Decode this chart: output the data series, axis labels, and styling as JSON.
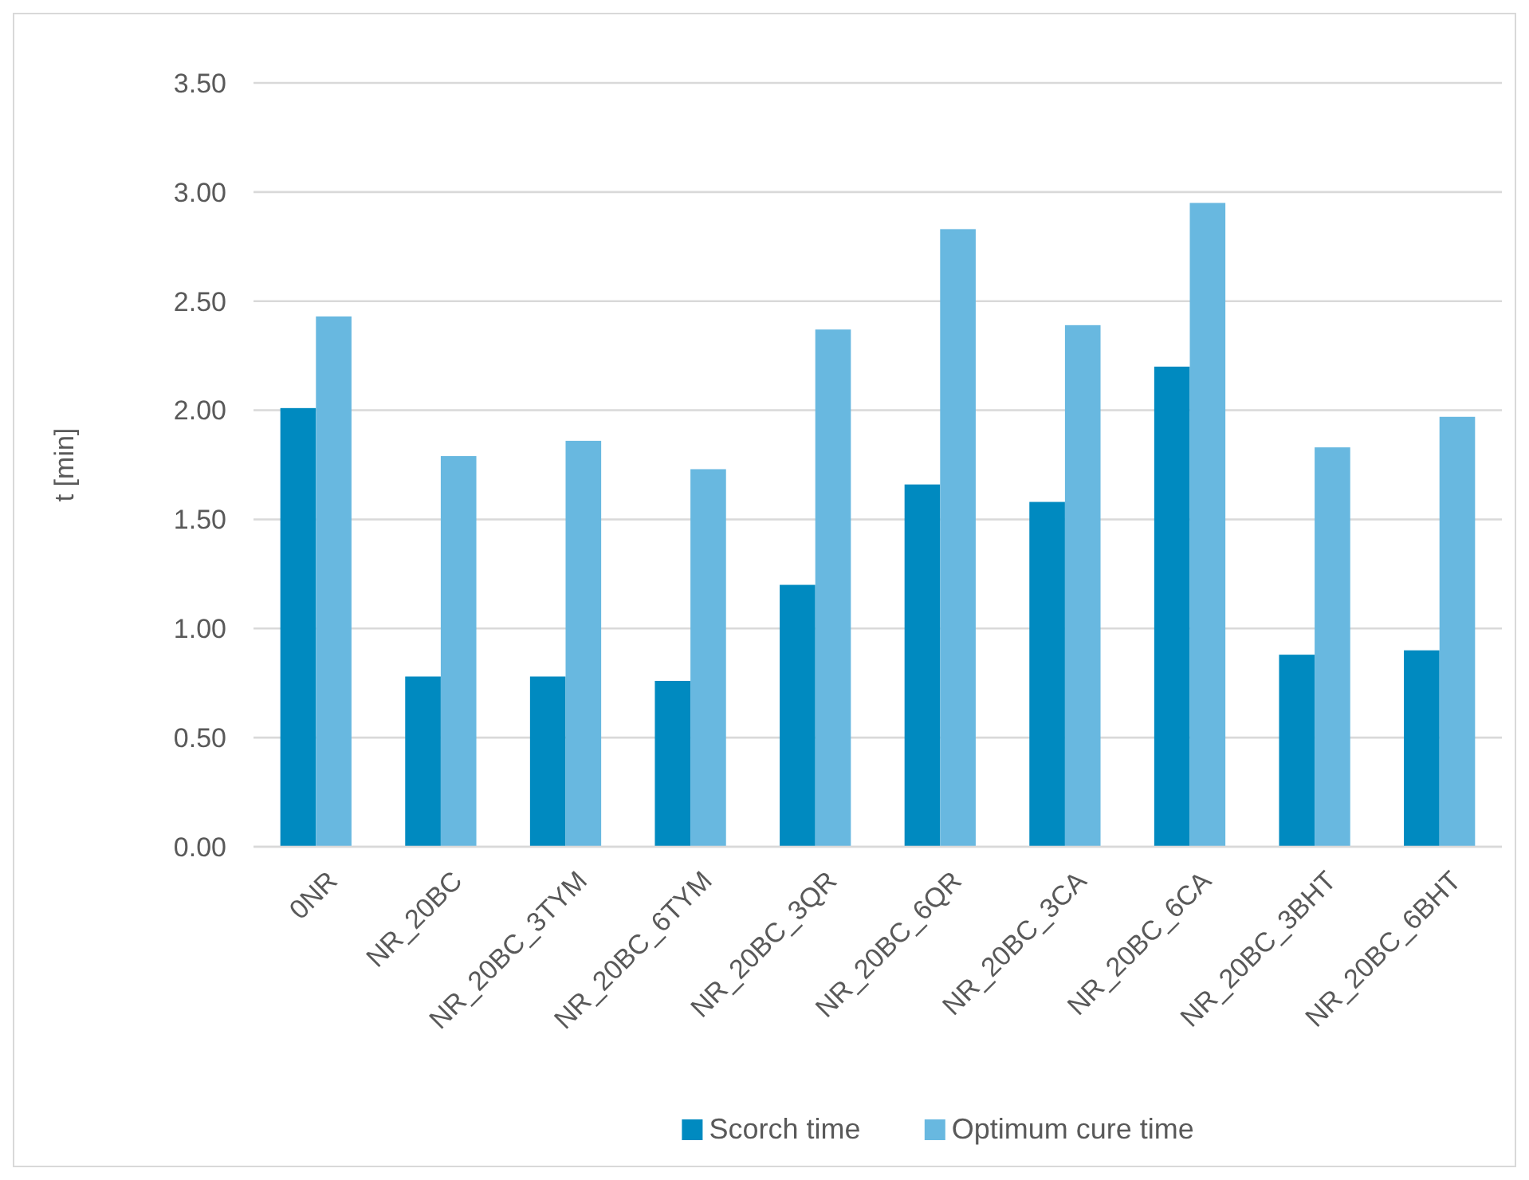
{
  "chart_data": {
    "type": "bar",
    "ylabel": "t [min]",
    "categories": [
      "0NR",
      "NR_20BC",
      "NR_20BC_3TYM",
      "NR_20BC_6TYM",
      "NR_20BC_3QR",
      "NR_20BC_6QR",
      "NR_20BC_3CA",
      "NR_20BC_6CA",
      "NR_20BC_3BHT",
      "NR_20BC_6BHT"
    ],
    "series": [
      {
        "name": "Scorch time",
        "color": "#008ac0",
        "values": [
          2.01,
          0.78,
          0.78,
          0.76,
          1.2,
          1.66,
          1.58,
          2.2,
          0.88,
          0.9
        ]
      },
      {
        "name": "Optimum cure time",
        "color": "#68b8e0",
        "values": [
          2.43,
          1.79,
          1.86,
          1.73,
          2.37,
          2.83,
          2.39,
          2.95,
          1.83,
          1.97
        ]
      }
    ],
    "ylim": [
      0,
      3.5
    ],
    "yticks": [
      {
        "value": 0,
        "label": "0.00"
      },
      {
        "value": 0.5,
        "label": "0.50"
      },
      {
        "value": 1,
        "label": "1.00"
      },
      {
        "value": 1.5,
        "label": "1.50"
      },
      {
        "value": 2,
        "label": "2.00"
      },
      {
        "value": 2.5,
        "label": "2.50"
      },
      {
        "value": 3,
        "label": "3.00"
      },
      {
        "value": 3.5,
        "label": "3.50"
      }
    ],
    "grid": "y",
    "legend": "bottom"
  }
}
